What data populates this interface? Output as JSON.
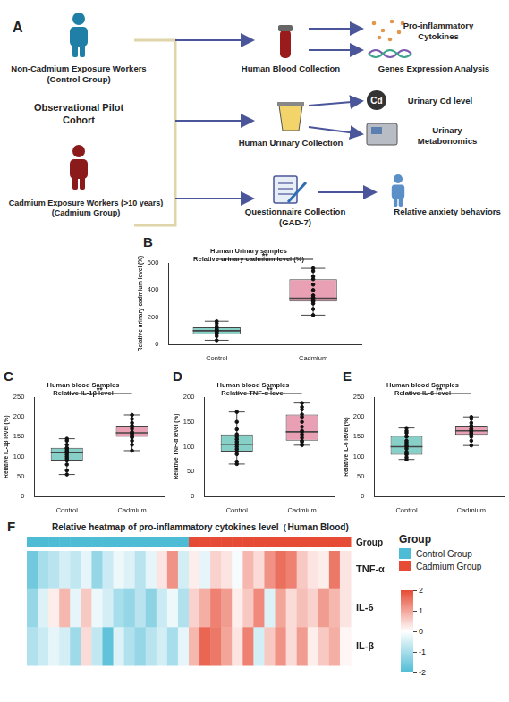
{
  "diagram": {
    "panel": "A",
    "groups": [
      {
        "label": [
          "Non-Cadmium Exposure Workers",
          "(Control Group)"
        ]
      },
      {
        "label": [
          "Cadmium Exposure Workers (>10 years)",
          "(Cadmium Group)"
        ]
      }
    ],
    "cohort": [
      "Observational Pilot",
      "Cohort"
    ],
    "cd_icon": "Cd",
    "steps": [
      {
        "label": [
          "Human Blood Collection"
        ],
        "outputs": [
          [
            "Pro-inflammatory",
            "Cytokines"
          ],
          [
            "Genes Expression Analysis"
          ]
        ]
      },
      {
        "label": [
          "Human Urinary Collection"
        ],
        "outputs": [
          [
            "Urinary Cd level"
          ],
          [
            "Urinary",
            "Metabonomics"
          ]
        ]
      },
      {
        "label": [
          "Questionnaire Collection",
          "(GAD-7)"
        ],
        "outputs": [
          [
            "Relative anxiety behaviors"
          ]
        ]
      }
    ]
  },
  "chart_data": [
    {
      "panel": "B",
      "type": "box",
      "title": [
        "Human Urinary samples",
        "Relative urinary cadmium level (%)"
      ],
      "categories": [
        "Control",
        "Cadmium"
      ],
      "colors": [
        "#86d0c8",
        "#e9a0b5"
      ],
      "ylabel": "Relative urinary cadmium level (%)",
      "ylim": [
        0,
        600
      ],
      "yticks": [
        0,
        200,
        400,
        600
      ],
      "grid": false,
      "boxes": [
        {
          "min": 30,
          "q1": 75,
          "median": 100,
          "q3": 125,
          "max": 170
        },
        {
          "min": 215,
          "q1": 315,
          "median": 340,
          "q3": 480,
          "max": 560
        }
      ],
      "points": [
        [
          30,
          60,
          75,
          80,
          85,
          95,
          100,
          100,
          105,
          110,
          120,
          125,
          135,
          155,
          170
        ],
        [
          215,
          260,
          300,
          315,
          320,
          330,
          340,
          345,
          360,
          400,
          440,
          480,
          500,
          540,
          560
        ]
      ],
      "significance": "**"
    },
    {
      "panel": "C",
      "type": "box",
      "title": [
        "Human blood Samples",
        "Relative IL-1β level"
      ],
      "categories": [
        "Control",
        "Cadmium"
      ],
      "colors": [
        "#86d0c8",
        "#e9a0b5"
      ],
      "ylabel": "Relative IL-1β level (%)",
      "ylim": [
        0,
        250
      ],
      "yticks": [
        0,
        50,
        100,
        150,
        200,
        250
      ],
      "grid": false,
      "boxes": [
        {
          "min": 55,
          "q1": 90,
          "median": 110,
          "q3": 122,
          "max": 145
        },
        {
          "min": 115,
          "q1": 150,
          "median": 160,
          "q3": 178,
          "max": 205
        }
      ],
      "points": [
        [
          55,
          65,
          80,
          90,
          95,
          100,
          105,
          110,
          112,
          115,
          120,
          122,
          130,
          140,
          145
        ],
        [
          115,
          130,
          140,
          148,
          150,
          155,
          158,
          160,
          162,
          170,
          175,
          178,
          185,
          195,
          205
        ]
      ],
      "significance": "**"
    },
    {
      "panel": "D",
      "type": "box",
      "title": [
        "Human blood Samples",
        "Relative TNF-α level"
      ],
      "categories": [
        "Control",
        "Cadmium"
      ],
      "colors": [
        "#86d0c8",
        "#e9a0b5"
      ],
      "ylabel": "Relative TNF-α level (%)",
      "ylim": [
        0,
        200
      ],
      "yticks": [
        0,
        50,
        100,
        150,
        200
      ],
      "grid": false,
      "boxes": [
        {
          "min": 65,
          "q1": 90,
          "median": 105,
          "q3": 125,
          "max": 170
        },
        {
          "min": 103,
          "q1": 112,
          "median": 130,
          "q3": 165,
          "max": 188
        }
      ],
      "points": [
        [
          65,
          70,
          85,
          90,
          95,
          100,
          105,
          105,
          110,
          115,
          120,
          125,
          135,
          150,
          170
        ],
        [
          103,
          105,
          110,
          112,
          118,
          125,
          130,
          132,
          140,
          150,
          160,
          165,
          175,
          180,
          188
        ]
      ],
      "significance": "**"
    },
    {
      "panel": "E",
      "type": "box",
      "title": [
        "Human blood Samples",
        "Relative IL-6 level"
      ],
      "categories": [
        "Control",
        "Cadmium"
      ],
      "colors": [
        "#86d0c8",
        "#e9a0b5"
      ],
      "ylabel": "Relative IL-6 level (%)",
      "ylim": [
        0,
        250
      ],
      "yticks": [
        0,
        50,
        100,
        150,
        200,
        250
      ],
      "grid": false,
      "boxes": [
        {
          "min": 93,
          "q1": 105,
          "median": 125,
          "q3": 152,
          "max": 172
        },
        {
          "min": 128,
          "q1": 155,
          "median": 165,
          "q3": 178,
          "max": 200
        }
      ],
      "points": [
        [
          93,
          98,
          105,
          108,
          112,
          120,
          125,
          128,
          135,
          140,
          150,
          152,
          160,
          165,
          172
        ],
        [
          128,
          140,
          150,
          155,
          158,
          160,
          163,
          165,
          168,
          170,
          175,
          178,
          185,
          195,
          200
        ]
      ],
      "significance": "**"
    },
    {
      "panel": "F",
      "type": "heatmap",
      "title": "Relative heatmap of pro-inflammatory cytokines level（Human Blood)",
      "rows": [
        "TNF-α",
        "IL-6",
        "IL-β"
      ],
      "group_label": "Group",
      "groups": [
        {
          "name": "Control Group",
          "color": "#4fbcd6",
          "count": 15
        },
        {
          "name": "Cadmium Group",
          "color": "#e64b35",
          "count": 15
        }
      ],
      "cells": [
        [
          -1.6,
          -1.0,
          -0.8,
          -0.5,
          -0.7,
          -0.3,
          -1.2,
          -0.6,
          -0.2,
          -0.4,
          -0.8,
          -0.3,
          0.3,
          1.2,
          -0.5,
          0.2,
          -0.3,
          0.5,
          0.3,
          -0.1,
          0.8,
          0.4,
          1.2,
          1.6,
          1.4,
          0.6,
          0.3,
          0.2,
          1.5,
          0.3
        ],
        [
          -1.2,
          -0.4,
          0.2,
          0.8,
          -0.3,
          0.6,
          -0.2,
          -0.5,
          -1.0,
          -1.2,
          -0.8,
          -1.3,
          -0.6,
          -0.2,
          -0.9,
          0.5,
          0.9,
          1.4,
          1.1,
          0.2,
          0.6,
          1.3,
          -0.4,
          1.0,
          0.4,
          0.7,
          0.5,
          1.1,
          0.8,
          0.3
        ],
        [
          -0.9,
          -0.6,
          -0.3,
          -0.5,
          -1.1,
          0.4,
          -0.7,
          -1.8,
          -0.4,
          -0.9,
          -1.2,
          -0.8,
          -0.5,
          -1.0,
          -0.3,
          0.8,
          1.7,
          1.5,
          1.0,
          0.3,
          1.4,
          -0.5,
          0.6,
          1.2,
          0.4,
          1.1,
          0.2,
          0.6,
          0.9,
          0.1
        ]
      ],
      "colorbar": {
        "range": [
          -2,
          2
        ],
        "ticks": [
          -2,
          -1,
          0,
          1,
          2
        ],
        "colors": [
          "#4fbcd6",
          "#ffffff",
          "#e64b35"
        ]
      },
      "legend": "right"
    }
  ]
}
